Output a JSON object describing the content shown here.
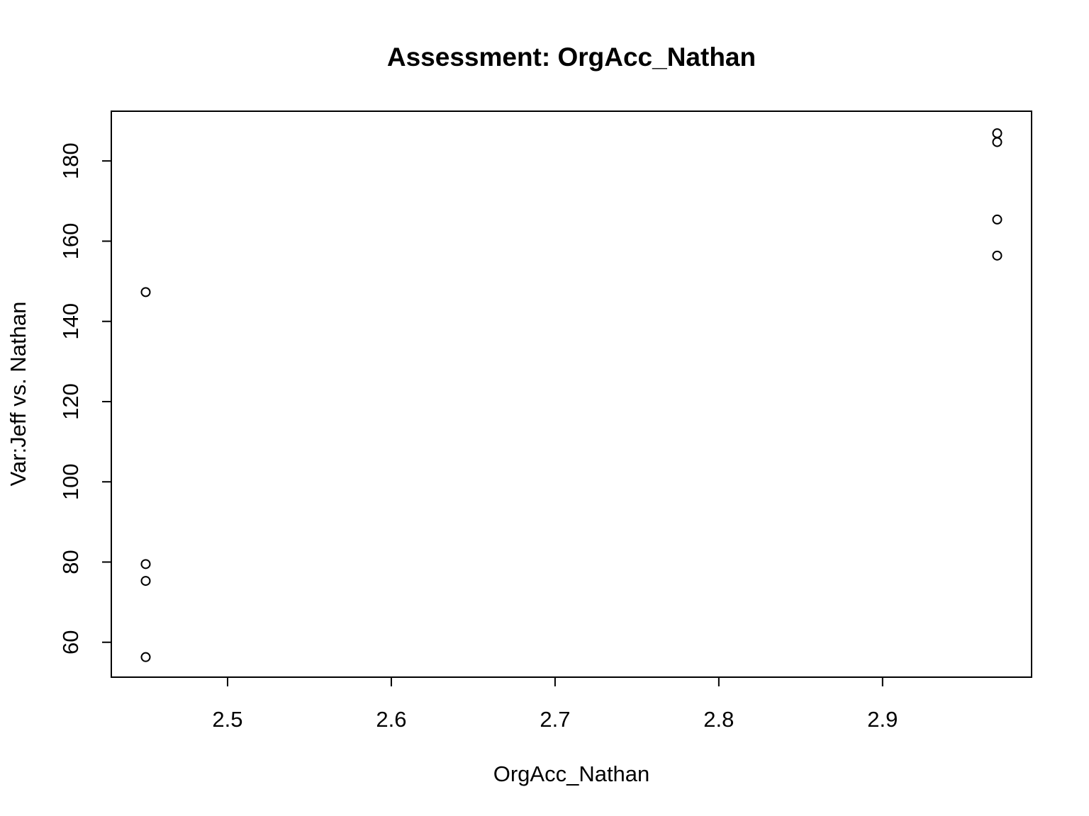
{
  "chart_data": {
    "type": "scatter",
    "title": "Assessment: OrgAcc_Nathan",
    "xlabel": "OrgAcc_Nathan",
    "ylabel": "Var:Jeff vs. Nathan",
    "xlim": [
      2.429,
      2.991
    ],
    "ylim": [
      51.3,
      192.4
    ],
    "xticks": [
      2.5,
      2.6,
      2.7,
      2.8,
      2.9
    ],
    "xtick_labels": [
      "2.5",
      "2.6",
      "2.7",
      "2.8",
      "2.9"
    ],
    "yticks": [
      60,
      80,
      100,
      120,
      140,
      160,
      180
    ],
    "ytick_labels": [
      "60",
      "80",
      "100",
      "120",
      "140",
      "160",
      "180"
    ],
    "grid": false,
    "marker": "open-circle",
    "points": [
      {
        "x": 2.45,
        "y": 56.3
      },
      {
        "x": 2.45,
        "y": 75.3
      },
      {
        "x": 2.45,
        "y": 79.5
      },
      {
        "x": 2.45,
        "y": 147.3
      },
      {
        "x": 2.97,
        "y": 156.4
      },
      {
        "x": 2.97,
        "y": 165.4
      },
      {
        "x": 2.97,
        "y": 184.7
      },
      {
        "x": 2.97,
        "y": 186.9
      }
    ]
  }
}
